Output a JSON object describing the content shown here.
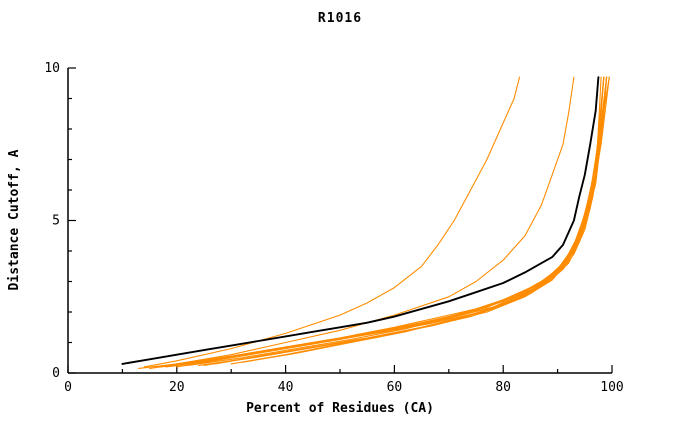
{
  "title": "R1016",
  "chart_data": {
    "type": "line",
    "title": "R1016",
    "xlabel": "Percent of Residues (CA)",
    "ylabel": "Distance Cutoff, A",
    "xlim": [
      0,
      100
    ],
    "ylim": [
      0,
      10
    ],
    "x_major_ticks": [
      0,
      20,
      40,
      60,
      80,
      100
    ],
    "x_minor_step": 10,
    "y_major_ticks": [
      0,
      5,
      10
    ],
    "y_minor_step": 1,
    "grid": false,
    "legend_position": "none",
    "colors": {
      "model": "#ff8c00",
      "reference": "#000000",
      "axis": "#000000",
      "background": "#ffffff"
    },
    "series": [
      {
        "name": "model-outlier-early",
        "role": "model",
        "points": [
          [
            14,
            0.2
          ],
          [
            20,
            0.4
          ],
          [
            30,
            0.8
          ],
          [
            40,
            1.3
          ],
          [
            50,
            1.9
          ],
          [
            55,
            2.3
          ],
          [
            60,
            2.8
          ],
          [
            65,
            3.5
          ],
          [
            68,
            4.2
          ],
          [
            71,
            5.0
          ],
          [
            74,
            6.0
          ],
          [
            77,
            7.0
          ],
          [
            80,
            8.2
          ],
          [
            82,
            9.0
          ],
          [
            83,
            9.7
          ]
        ]
      },
      {
        "name": "model-outlier-mid",
        "role": "model",
        "points": [
          [
            20,
            0.3
          ],
          [
            30,
            0.6
          ],
          [
            40,
            1.0
          ],
          [
            50,
            1.4
          ],
          [
            60,
            1.9
          ],
          [
            70,
            2.5
          ],
          [
            75,
            3.0
          ],
          [
            80,
            3.7
          ],
          [
            84,
            4.5
          ],
          [
            87,
            5.5
          ],
          [
            89,
            6.5
          ],
          [
            91,
            7.5
          ],
          [
            92,
            8.5
          ],
          [
            93,
            9.7
          ]
        ]
      },
      {
        "name": "model-01",
        "role": "model",
        "points": [
          [
            13,
            0.15
          ],
          [
            20,
            0.3
          ],
          [
            30,
            0.55
          ],
          [
            40,
            0.85
          ],
          [
            50,
            1.15
          ],
          [
            60,
            1.5
          ],
          [
            70,
            1.9
          ],
          [
            75,
            2.1
          ],
          [
            80,
            2.4
          ],
          [
            85,
            2.8
          ],
          [
            88,
            3.1
          ],
          [
            91,
            3.5
          ],
          [
            93,
            4.0
          ],
          [
            95,
            4.8
          ],
          [
            96,
            5.5
          ],
          [
            97,
            6.5
          ],
          [
            97.5,
            8.0
          ],
          [
            98,
            9.7
          ]
        ]
      },
      {
        "name": "model-02",
        "role": "model",
        "points": [
          [
            15,
            0.15
          ],
          [
            25,
            0.4
          ],
          [
            35,
            0.7
          ],
          [
            45,
            1.0
          ],
          [
            55,
            1.3
          ],
          [
            65,
            1.65
          ],
          [
            75,
            2.05
          ],
          [
            82,
            2.5
          ],
          [
            87,
            3.0
          ],
          [
            90,
            3.4
          ],
          [
            92,
            3.9
          ],
          [
            94,
            4.6
          ],
          [
            96,
            5.6
          ],
          [
            97,
            7.0
          ],
          [
            98,
            8.5
          ],
          [
            98.5,
            9.7
          ]
        ]
      },
      {
        "name": "model-03",
        "role": "model",
        "points": [
          [
            17,
            0.2
          ],
          [
            27,
            0.45
          ],
          [
            37,
            0.75
          ],
          [
            47,
            1.05
          ],
          [
            57,
            1.35
          ],
          [
            67,
            1.7
          ],
          [
            77,
            2.15
          ],
          [
            84,
            2.65
          ],
          [
            89,
            3.2
          ],
          [
            92,
            3.8
          ],
          [
            94,
            4.5
          ],
          [
            96,
            5.8
          ],
          [
            97.5,
            7.5
          ],
          [
            98.5,
            9.7
          ]
        ]
      },
      {
        "name": "model-04",
        "role": "model",
        "points": [
          [
            20,
            0.2
          ],
          [
            30,
            0.5
          ],
          [
            40,
            0.8
          ],
          [
            50,
            1.1
          ],
          [
            60,
            1.45
          ],
          [
            70,
            1.85
          ],
          [
            78,
            2.25
          ],
          [
            84,
            2.7
          ],
          [
            88,
            3.1
          ],
          [
            91,
            3.6
          ],
          [
            93,
            4.2
          ],
          [
            95,
            5.2
          ],
          [
            97,
            6.8
          ],
          [
            98,
            8.8
          ],
          [
            98.5,
            9.7
          ]
        ]
      },
      {
        "name": "model-05",
        "role": "model",
        "points": [
          [
            22,
            0.25
          ],
          [
            32,
            0.5
          ],
          [
            42,
            0.8
          ],
          [
            52,
            1.1
          ],
          [
            62,
            1.45
          ],
          [
            72,
            1.9
          ],
          [
            80,
            2.35
          ],
          [
            86,
            2.85
          ],
          [
            90,
            3.4
          ],
          [
            93,
            4.1
          ],
          [
            95,
            5.0
          ],
          [
            96.5,
            6.3
          ],
          [
            98,
            8.2
          ],
          [
            99,
            9.7
          ]
        ]
      },
      {
        "name": "model-06",
        "role": "model",
        "points": [
          [
            25,
            0.25
          ],
          [
            35,
            0.55
          ],
          [
            45,
            0.85
          ],
          [
            55,
            1.15
          ],
          [
            65,
            1.5
          ],
          [
            75,
            1.95
          ],
          [
            82,
            2.4
          ],
          [
            87,
            2.9
          ],
          [
            91,
            3.5
          ],
          [
            93,
            4.0
          ],
          [
            95,
            4.9
          ],
          [
            97,
            6.2
          ],
          [
            98.5,
            8.5
          ],
          [
            99,
            9.7
          ]
        ]
      },
      {
        "name": "model-07",
        "role": "model",
        "points": [
          [
            27,
            0.3
          ],
          [
            37,
            0.6
          ],
          [
            47,
            0.9
          ],
          [
            57,
            1.2
          ],
          [
            67,
            1.55
          ],
          [
            77,
            2.0
          ],
          [
            84,
            2.5
          ],
          [
            89,
            3.05
          ],
          [
            92,
            3.7
          ],
          [
            94,
            4.4
          ],
          [
            96,
            5.5
          ],
          [
            97.5,
            7.2
          ],
          [
            99,
            9.7
          ]
        ]
      },
      {
        "name": "model-08",
        "role": "model",
        "points": [
          [
            30,
            0.3
          ],
          [
            40,
            0.6
          ],
          [
            50,
            0.95
          ],
          [
            60,
            1.3
          ],
          [
            70,
            1.7
          ],
          [
            78,
            2.1
          ],
          [
            85,
            2.6
          ],
          [
            89,
            3.1
          ],
          [
            92,
            3.6
          ],
          [
            94,
            4.3
          ],
          [
            96,
            5.4
          ],
          [
            98,
            7.5
          ],
          [
            99.5,
            9.7
          ]
        ]
      },
      {
        "name": "model-09",
        "role": "model",
        "points": [
          [
            32,
            0.35
          ],
          [
            42,
            0.65
          ],
          [
            52,
            1.0
          ],
          [
            62,
            1.35
          ],
          [
            72,
            1.8
          ],
          [
            80,
            2.25
          ],
          [
            86,
            2.75
          ],
          [
            90,
            3.3
          ],
          [
            93,
            4.0
          ],
          [
            95,
            4.9
          ],
          [
            97,
            6.5
          ],
          [
            98.5,
            8.6
          ],
          [
            99.5,
            9.7
          ]
        ]
      },
      {
        "name": "model-10",
        "role": "model",
        "points": [
          [
            16,
            0.2
          ],
          [
            26,
            0.45
          ],
          [
            36,
            0.7
          ],
          [
            46,
            1.0
          ],
          [
            56,
            1.3
          ],
          [
            66,
            1.6
          ],
          [
            76,
            2.0
          ],
          [
            83,
            2.45
          ],
          [
            88,
            2.95
          ],
          [
            91,
            3.4
          ],
          [
            93,
            3.9
          ],
          [
            95,
            4.7
          ],
          [
            96.5,
            5.8
          ],
          [
            98,
            7.8
          ],
          [
            99,
            9.7
          ]
        ]
      },
      {
        "name": "model-11",
        "role": "model",
        "points": [
          [
            18,
            0.2
          ],
          [
            28,
            0.45
          ],
          [
            38,
            0.75
          ],
          [
            48,
            1.05
          ],
          [
            58,
            1.35
          ],
          [
            68,
            1.7
          ],
          [
            78,
            2.15
          ],
          [
            85,
            2.7
          ],
          [
            89,
            3.2
          ],
          [
            92,
            3.8
          ],
          [
            94,
            4.6
          ],
          [
            96,
            5.9
          ],
          [
            97.5,
            7.6
          ],
          [
            98.5,
            9.7
          ]
        ]
      },
      {
        "name": "model-12",
        "role": "model",
        "points": [
          [
            24,
            0.25
          ],
          [
            34,
            0.5
          ],
          [
            44,
            0.8
          ],
          [
            54,
            1.1
          ],
          [
            64,
            1.45
          ],
          [
            74,
            1.85
          ],
          [
            81,
            2.3
          ],
          [
            87,
            2.85
          ],
          [
            91,
            3.45
          ],
          [
            94,
            4.3
          ],
          [
            96,
            5.5
          ],
          [
            97.5,
            7.0
          ],
          [
            98.5,
            8.8
          ],
          [
            99,
            9.7
          ]
        ]
      },
      {
        "name": "model-13",
        "role": "model",
        "points": [
          [
            19,
            0.22
          ],
          [
            29,
            0.48
          ],
          [
            39,
            0.78
          ],
          [
            49,
            1.08
          ],
          [
            59,
            1.38
          ],
          [
            69,
            1.75
          ],
          [
            79,
            2.2
          ],
          [
            86,
            2.8
          ],
          [
            90,
            3.35
          ],
          [
            93,
            4.05
          ],
          [
            95,
            5.1
          ],
          [
            96.5,
            6.0
          ],
          [
            98,
            7.9
          ],
          [
            99,
            9.7
          ]
        ]
      },
      {
        "name": "reference",
        "role": "reference",
        "points": [
          [
            10,
            0.3
          ],
          [
            15,
            0.45
          ],
          [
            20,
            0.6
          ],
          [
            25,
            0.75
          ],
          [
            30,
            0.9
          ],
          [
            35,
            1.05
          ],
          [
            40,
            1.2
          ],
          [
            45,
            1.35
          ],
          [
            50,
            1.5
          ],
          [
            55,
            1.65
          ],
          [
            60,
            1.85
          ],
          [
            65,
            2.1
          ],
          [
            70,
            2.35
          ],
          [
            75,
            2.65
          ],
          [
            80,
            2.95
          ],
          [
            84,
            3.3
          ],
          [
            87,
            3.6
          ],
          [
            89,
            3.8
          ],
          [
            91,
            4.2
          ],
          [
            93,
            5.0
          ],
          [
            94,
            5.8
          ],
          [
            95,
            6.5
          ],
          [
            96,
            7.5
          ],
          [
            97,
            8.6
          ],
          [
            97.5,
            9.7
          ]
        ]
      }
    ]
  }
}
